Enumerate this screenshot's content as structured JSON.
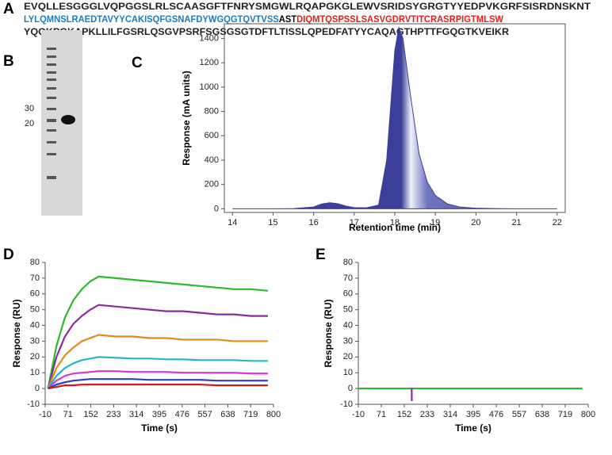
{
  "panel_labels": [
    "A",
    "B",
    "C",
    "D",
    "E"
  ],
  "sequence": {
    "heavy_chain": [
      "EVQLLESGGGLVQPGGSLRLSCAASGFTFNRYSMGWLRQAPGKGLEWVSRIDSYGRGTYYEDPVKGRFSISRDNSKNT",
      "LYLQMNSLRAEDTAVYYCAKISQFGSNAFDYWGQGTQVTVSS"
    ],
    "linker": "AST",
    "light_chain": [
      "DIQMTQSPSSLSASVGDRVTITCRASRPIGTMLSW",
      "YQQKPGKAPKLLILFGSRLQSGVPSRFSGSGSGTDFTLTISSLQPEDFATYYCAQAGTHPTTFGQGTKVEIKR"
    ]
  },
  "gel": {
    "marker_labels": [
      "30",
      "20"
    ]
  },
  "chart_data": [
    {
      "type": "area",
      "xlabel": "Retention time (min)",
      "ylabel": "Response (mA units)",
      "color": "#3c3f99",
      "x": [
        14,
        14.5,
        15,
        15.5,
        16,
        16.2,
        16.4,
        16.6,
        16.8,
        17,
        17.3,
        17.6,
        17.8,
        18,
        18.1,
        18.2,
        18.4,
        18.6,
        18.8,
        19,
        19.3,
        19.6,
        20,
        20.5,
        21,
        21.5,
        22
      ],
      "values": [
        0,
        0,
        0,
        2,
        15,
        40,
        50,
        42,
        22,
        10,
        8,
        30,
        400,
        1300,
        1490,
        1400,
        900,
        450,
        220,
        110,
        40,
        15,
        5,
        2,
        0,
        0,
        0
      ],
      "xlim": [
        13.8,
        22.2
      ],
      "ylim": [
        -30,
        1520
      ],
      "xticks": [
        14,
        15,
        16,
        17,
        18,
        19,
        20,
        21,
        22
      ],
      "yticks": [
        0,
        200,
        400,
        600,
        800,
        1000,
        1200,
        1400
      ]
    },
    {
      "type": "line",
      "xlabel": "Time (s)",
      "ylabel": "Response  (RU)",
      "x": [
        0,
        30,
        60,
        90,
        120,
        150,
        180,
        240,
        300,
        360,
        420,
        480,
        540,
        600,
        660,
        720,
        780
      ],
      "series": [
        {
          "color": "#2db82d",
          "values": [
            0,
            27,
            45,
            56,
            63,
            68,
            71,
            70,
            69,
            68,
            67,
            66,
            65,
            64,
            63,
            63,
            62
          ]
        },
        {
          "color": "#8a2a9e",
          "values": [
            0,
            20,
            33,
            41,
            46,
            50,
            53,
            52,
            51,
            50,
            49,
            49,
            48,
            47,
            47,
            46,
            46
          ]
        },
        {
          "color": "#e08a1a",
          "values": [
            0,
            13,
            21,
            26,
            30,
            32,
            34,
            33,
            33,
            32,
            32,
            31,
            31,
            31,
            30,
            30,
            30
          ]
        },
        {
          "color": "#25b5c8",
          "values": [
            0,
            8,
            13,
            16,
            18,
            19,
            20,
            19.5,
            19,
            19,
            18.5,
            18.5,
            18,
            18,
            18,
            17.5,
            17.5
          ]
        },
        {
          "color": "#d43bd4",
          "values": [
            0,
            5,
            8,
            9.5,
            10,
            10.5,
            11,
            11,
            10.5,
            10.5,
            10.5,
            10,
            10,
            10,
            10,
            9.5,
            9.5
          ]
        },
        {
          "color": "#2a3fc8",
          "values": [
            0,
            2.5,
            4,
            5,
            5.5,
            6,
            6,
            6,
            6,
            5.5,
            5.5,
            5.5,
            5.5,
            5,
            5,
            5,
            5
          ]
        },
        {
          "color": "#c8201e",
          "values": [
            0,
            1,
            2,
            2,
            2.5,
            2.5,
            2.5,
            2.5,
            2.5,
            2.5,
            2.5,
            2.5,
            2.5,
            2,
            2,
            2,
            2
          ]
        }
      ],
      "xlim": [
        -10,
        800
      ],
      "ylim": [
        -10,
        80
      ],
      "xticks": [
        -10,
        71,
        152,
        233,
        314,
        395,
        476,
        557,
        638,
        719,
        800
      ],
      "yticks": [
        -10,
        0,
        10,
        20,
        30,
        40,
        50,
        60,
        70,
        80
      ]
    },
    {
      "type": "line",
      "xlabel": "Time (s)",
      "ylabel": "Response  (RU)",
      "x": [
        -10,
        100,
        178,
        178.5,
        200,
        400,
        600,
        780
      ],
      "series": [
        {
          "color": "#2db82d",
          "values": [
            0,
            0,
            0,
            0,
            0,
            0,
            0,
            0
          ]
        },
        {
          "color": "#8a2a9e",
          "values": [
            null,
            null,
            0,
            -8,
            null,
            null,
            null,
            null
          ]
        }
      ],
      "xlim": [
        -10,
        800
      ],
      "ylim": [
        -10,
        80
      ],
      "xticks": [
        -10,
        71,
        152,
        233,
        314,
        395,
        476,
        557,
        638,
        719,
        800
      ],
      "yticks": [
        -10,
        0,
        10,
        20,
        30,
        40,
        50,
        60,
        70,
        80
      ]
    }
  ]
}
